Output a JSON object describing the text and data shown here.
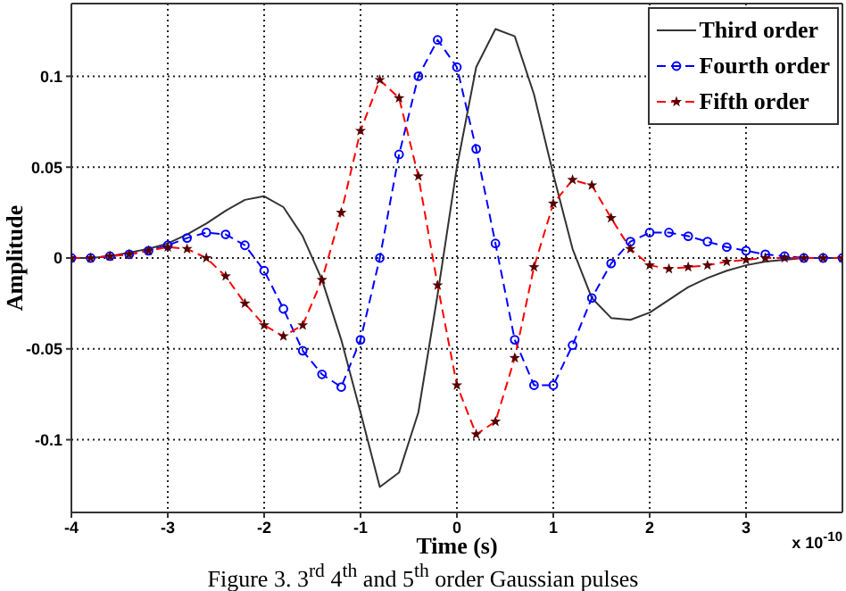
{
  "chart_data": {
    "type": "line",
    "xlabel": "Time (s)",
    "ylabel": "Amplitude",
    "annotations": [
      "x 10$^{-10}$",
      "Figure 3. 3$^{rd}$ 4$^{th}$ and 5$^{th}$ order Gaussian pulses"
    ],
    "x": [
      -4,
      -3.8,
      -3.6,
      -3.4,
      -3.2,
      -3,
      -2.8,
      -2.6,
      -2.4,
      -2.2,
      -2,
      -1.8,
      -1.6,
      -1.4,
      -1.2,
      -1,
      -0.8,
      -0.6,
      -0.4,
      -0.2,
      0,
      0.2,
      0.4,
      0.6,
      0.8,
      1,
      1.2,
      1.4,
      1.6,
      1.8,
      2,
      2.2,
      2.4,
      2.6,
      2.8,
      3,
      3.2,
      3.4,
      3.6,
      3.8,
      4
    ],
    "series": [
      {
        "name": "Third order",
        "color": "#333333",
        "marker": "none",
        "line_style": "solid",
        "values": [
          0,
          0,
          0.001,
          0.003,
          0.005,
          0.008,
          0.013,
          0.019,
          0.026,
          0.032,
          0.034,
          0.028,
          0.012,
          -0.012,
          -0.045,
          -0.085,
          -0.126,
          -0.118,
          -0.085,
          -0.02,
          0.05,
          0.105,
          0.126,
          0.122,
          0.09,
          0.046,
          0.005,
          -0.022,
          -0.033,
          -0.034,
          -0.03,
          -0.023,
          -0.016,
          -0.011,
          -0.007,
          -0.004,
          -0.002,
          -0.001,
          0,
          0,
          0
        ]
      },
      {
        "name": "Fourth order",
        "color": "#0000ff",
        "marker": "circle",
        "line_style": "dashed",
        "values": [
          0,
          0,
          0.001,
          0.002,
          0.004,
          0.007,
          0.011,
          0.014,
          0.013,
          0.007,
          -0.007,
          -0.028,
          -0.051,
          -0.064,
          -0.071,
          -0.045,
          0,
          0.057,
          0.1,
          0.12,
          0.105,
          0.06,
          0.008,
          -0.045,
          -0.07,
          -0.07,
          -0.048,
          -0.022,
          -0.003,
          0.009,
          0.014,
          0.014,
          0.012,
          0.009,
          0.006,
          0.004,
          0.002,
          0.001,
          0,
          0,
          0
        ]
      },
      {
        "name": "Fifth order",
        "color": "#ff0000",
        "marker": "star",
        "line_style": "dashed",
        "values": [
          0,
          0,
          0.001,
          0.002,
          0.004,
          0.006,
          0.005,
          0,
          -0.01,
          -0.025,
          -0.037,
          -0.043,
          -0.037,
          -0.012,
          0.025,
          0.07,
          0.098,
          0.088,
          0.045,
          -0.015,
          -0.07,
          -0.097,
          -0.09,
          -0.055,
          -0.005,
          0.03,
          0.043,
          0.04,
          0.022,
          0.005,
          -0.004,
          -0.006,
          -0.005,
          -0.004,
          -0.002,
          -0.001,
          0,
          0,
          0,
          0,
          0
        ]
      }
    ],
    "xlim": [
      -4,
      4
    ],
    "xticks": [
      -4,
      -3,
      -2,
      -1,
      0,
      1,
      2,
      3
    ],
    "ylim": [
      -0.14,
      0.14
    ],
    "yticks": [
      -0.1,
      -0.05,
      0,
      0.05,
      0.1
    ],
    "grid": true,
    "legend": "top right"
  }
}
